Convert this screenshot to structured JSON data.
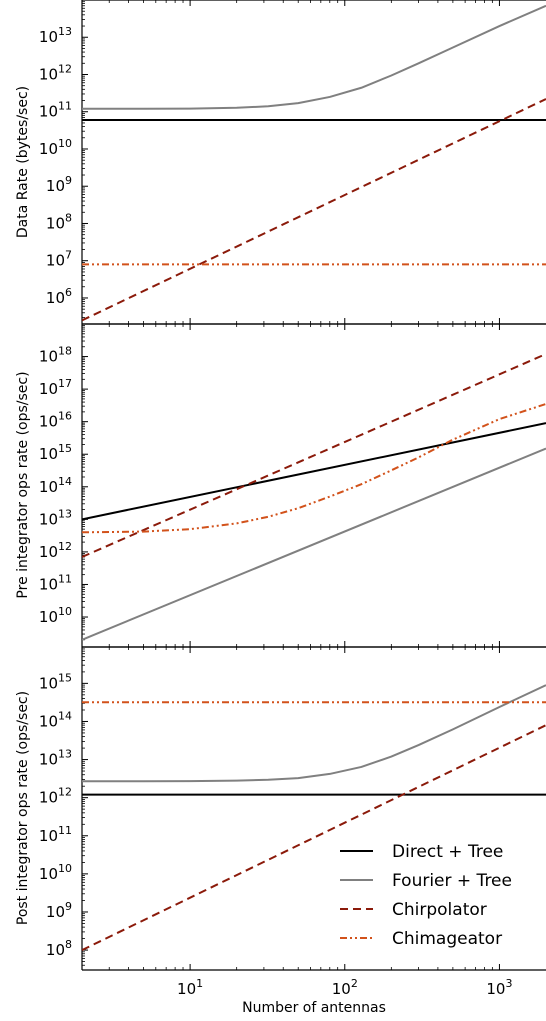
{
  "chart_data": [
    {
      "type": "line",
      "ylabel": "Data Rate (bytes/sec)",
      "xscale": "log",
      "yscale": "log",
      "xlim": [
        2,
        2000
      ],
      "ylim": [
        200000,
        100000000000000.0
      ],
      "yticks": [
        {
          "value": 1000000.0,
          "base": "10",
          "exp": "6"
        },
        {
          "value": 10000000.0,
          "base": "10",
          "exp": "7"
        },
        {
          "value": 100000000.0,
          "base": "10",
          "exp": "8"
        },
        {
          "value": 1000000000.0,
          "base": "10",
          "exp": "9"
        },
        {
          "value": 10000000000.0,
          "base": "10",
          "exp": "10"
        },
        {
          "value": 100000000000.0,
          "base": "10",
          "exp": "11"
        },
        {
          "value": 1000000000000.0,
          "base": "10",
          "exp": "12"
        },
        {
          "value": 10000000000000.0,
          "base": "10",
          "exp": "13"
        }
      ],
      "series": [
        {
          "key": "direct",
          "x": [
            2,
            2000
          ],
          "y": [
            60000000000.0,
            60000000000.0
          ]
        },
        {
          "key": "fourier",
          "x": [
            2,
            5,
            10,
            20,
            32,
            50,
            80,
            128,
            200,
            300,
            500,
            1000,
            2000
          ],
          "y": [
            120000000000.0,
            120000000000.0,
            121000000000.0,
            128000000000.0,
            140000000000.0,
            170000000000.0,
            250000000000.0,
            440000000000.0,
            940000000000.0,
            2000000000000.0,
            5300000000000.0,
            20000000000000.0,
            70000000000000.0
          ]
        },
        {
          "key": "chirpolator",
          "x": [
            2,
            2000
          ],
          "y": [
            250000,
            220000000000.0
          ]
        },
        {
          "key": "chimageator",
          "x": [
            2,
            2000
          ],
          "y": [
            8000000.0,
            8000000.0
          ]
        }
      ]
    },
    {
      "type": "line",
      "ylabel": "Pre integrator ops rate (ops/sec)",
      "xscale": "log",
      "yscale": "log",
      "xlim": [
        2,
        2000
      ],
      "ylim": [
        1200000000.0,
        1e+19
      ],
      "yticks": [
        {
          "value": 10000000000.0,
          "base": "10",
          "exp": "10"
        },
        {
          "value": 100000000000.0,
          "base": "10",
          "exp": "11"
        },
        {
          "value": 1000000000000.0,
          "base": "10",
          "exp": "12"
        },
        {
          "value": 10000000000000.0,
          "base": "10",
          "exp": "13"
        },
        {
          "value": 100000000000000.0,
          "base": "10",
          "exp": "14"
        },
        {
          "value": 1000000000000000.0,
          "base": "10",
          "exp": "15"
        },
        {
          "value": 1e+16,
          "base": "10",
          "exp": "16"
        },
        {
          "value": 1e+17,
          "base": "10",
          "exp": "17"
        },
        {
          "value": 1e+18,
          "base": "10",
          "exp": "18"
        }
      ],
      "series": [
        {
          "key": "direct",
          "x": [
            2,
            2000
          ],
          "y": [
            10000000000000.0,
            9000000000000000.0
          ]
        },
        {
          "key": "fourier",
          "x": [
            2,
            2000
          ],
          "y": [
            2000000000.0,
            1500000000000000.0
          ]
        },
        {
          "key": "chirpolator",
          "x": [
            2,
            2000
          ],
          "y": [
            700000000000.0,
            1.2e+18
          ]
        },
        {
          "key": "chimageator",
          "x": [
            2,
            5,
            10,
            20,
            32,
            50,
            80,
            128,
            200,
            300,
            500,
            1000,
            2000
          ],
          "y": [
            4000000000000.0,
            4200000000000.0,
            5000000000000.0,
            7500000000000.0,
            12000000000000.0,
            22000000000000.0,
            50000000000000.0,
            120000000000000.0,
            320000000000000.0,
            800000000000000.0,
            2800000000000000.0,
            1.2e+16,
            3.5e+16
          ]
        }
      ]
    },
    {
      "type": "line",
      "xlabel": "Number of antennas",
      "ylabel": "Post integrator ops rate (ops/sec)",
      "xscale": "log",
      "yscale": "log",
      "xlim": [
        2,
        2000
      ],
      "ylim": [
        30000000.0,
        9000000000000000.0
      ],
      "xticks": [
        {
          "value": 10,
          "base": "10",
          "exp": "1"
        },
        {
          "value": 100,
          "base": "10",
          "exp": "2"
        },
        {
          "value": 1000,
          "base": "10",
          "exp": "3"
        }
      ],
      "yticks": [
        {
          "value": 100000000.0,
          "base": "10",
          "exp": "8"
        },
        {
          "value": 1000000000.0,
          "base": "10",
          "exp": "9"
        },
        {
          "value": 10000000000.0,
          "base": "10",
          "exp": "10"
        },
        {
          "value": 100000000000.0,
          "base": "10",
          "exp": "11"
        },
        {
          "value": 1000000000000.0,
          "base": "10",
          "exp": "12"
        },
        {
          "value": 10000000000000.0,
          "base": "10",
          "exp": "13"
        },
        {
          "value": 100000000000000.0,
          "base": "10",
          "exp": "14"
        },
        {
          "value": 1000000000000000.0,
          "base": "10",
          "exp": "15"
        }
      ],
      "series": [
        {
          "key": "direct",
          "x": [
            2,
            2000
          ],
          "y": [
            1200000000000.0,
            1200000000000.0
          ]
        },
        {
          "key": "fourier",
          "x": [
            2,
            5,
            10,
            20,
            32,
            50,
            80,
            128,
            200,
            300,
            500,
            1000,
            2000
          ],
          "y": [
            2700000000000.0,
            2700000000000.0,
            2720000000000.0,
            2800000000000.0,
            2950000000000.0,
            3250000000000.0,
            4200000000000.0,
            6400000000000.0,
            12000000000000.0,
            24000000000000.0,
            62000000000000.0,
            240000000000000.0,
            900000000000000.0
          ]
        },
        {
          "key": "chirpolator",
          "x": [
            2,
            2000
          ],
          "y": [
            100000000.0,
            80000000000000.0
          ]
        },
        {
          "key": "chimageator",
          "x": [
            2,
            2000
          ],
          "y": [
            320000000000000.0,
            320000000000000.0
          ]
        }
      ],
      "legend": {
        "location": "lower-right",
        "entries": [
          {
            "key": "direct",
            "label": "Direct + Tree"
          },
          {
            "key": "fourier",
            "label": "Fourier + Tree"
          },
          {
            "key": "chirpolator",
            "label": "Chirpolator"
          },
          {
            "key": "chimageator",
            "label": "Chimageator"
          }
        ]
      }
    }
  ],
  "styles": {
    "direct": {
      "color": "#000000",
      "dash": ""
    },
    "fourier": {
      "color": "#808080",
      "dash": ""
    },
    "chirpolator": {
      "color": "#8b1a0a",
      "dash": "8 5"
    },
    "chimageator": {
      "color": "#d2521b",
      "dash": "7 3 2 3 2 3"
    }
  }
}
